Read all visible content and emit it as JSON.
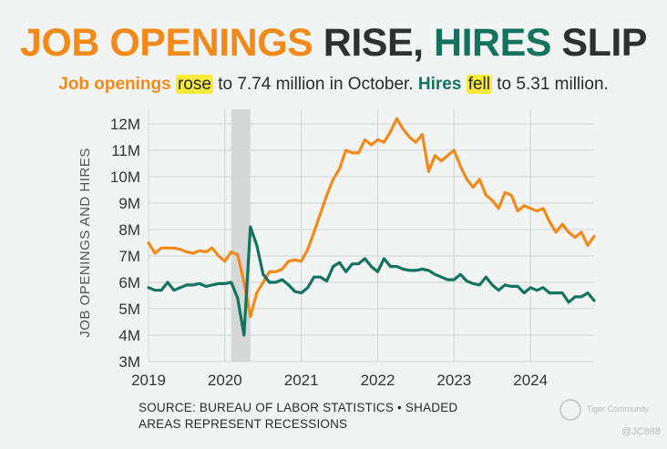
{
  "headline": {
    "part1": "JOB OPENINGS",
    "part2": " RISE, ",
    "part3": "HIRES",
    "part4": " SLIP"
  },
  "subtitle": {
    "s1": "Job openings",
    "s2": " ",
    "s3": "rose",
    "s4": " to 7.74 million in October. ",
    "s5": "Hires",
    "s6": " ",
    "s7": "fell",
    "s8": " to 5.31 million."
  },
  "source": {
    "line1": "SOURCE: BUREAU OF LABOR STATISTICS • SHADED",
    "line2": "AREAS REPRESENT RECESSIONS"
  },
  "logo": {
    "text": "Tiger Community"
  },
  "watermark": "@JC888",
  "colors": {
    "orange": "#f28a1a",
    "green": "#13735f",
    "headline_dark": "#2f3030",
    "recession": "#d6d8d8",
    "grid": "#cfd3d3",
    "axis_text": "#333333"
  },
  "chart_data": {
    "type": "line",
    "title": "JOB OPENINGS RISE, HIRES SLIP",
    "ylabel": "JOB OPENINGS AND HIRES",
    "xlabel": "",
    "xlim": [
      2019,
      2024.833
    ],
    "ylim": [
      3,
      12.5
    ],
    "grid": true,
    "x_ticks": [
      2019,
      2020,
      2021,
      2022,
      2023,
      2024
    ],
    "x_tick_labels": [
      "2019",
      "2020",
      "2021",
      "2022",
      "2023",
      "2024"
    ],
    "y_ticks": [
      3,
      4,
      5,
      6,
      7,
      8,
      9,
      10,
      11,
      12
    ],
    "y_tick_labels": [
      "3M",
      "4M",
      "5M",
      "6M",
      "7M",
      "8M",
      "9M",
      "10M",
      "11M",
      "12M"
    ],
    "recession_shading": [
      [
        2020.083,
        2020.333
      ]
    ],
    "x_start": 2019,
    "x_step_months": 1,
    "series": [
      {
        "name": "Job openings",
        "color_key": "orange",
        "values": [
          7.5,
          7.1,
          7.3,
          7.3,
          7.3,
          7.25,
          7.15,
          7.1,
          7.2,
          7.15,
          7.3,
          7.0,
          6.8,
          7.15,
          7.05,
          6.0,
          4.7,
          5.6,
          6.0,
          6.4,
          6.4,
          6.5,
          6.8,
          6.85,
          6.8,
          7.25,
          7.9,
          8.6,
          9.3,
          9.9,
          10.3,
          11.0,
          10.9,
          10.9,
          11.4,
          11.2,
          11.4,
          11.3,
          11.7,
          12.2,
          11.8,
          11.5,
          11.3,
          11.6,
          10.2,
          10.8,
          10.6,
          10.8,
          11.0,
          10.4,
          9.9,
          9.6,
          9.9,
          9.3,
          9.1,
          8.8,
          9.4,
          9.3,
          8.7,
          8.9,
          8.8,
          8.7,
          8.8,
          8.3,
          7.9,
          8.2,
          7.9,
          7.7,
          7.9,
          7.4,
          7.74
        ]
      },
      {
        "name": "Hires",
        "color_key": "green",
        "values": [
          5.8,
          5.7,
          5.7,
          6.0,
          5.7,
          5.8,
          5.9,
          5.9,
          5.95,
          5.85,
          5.9,
          5.95,
          5.95,
          6.0,
          5.4,
          4.0,
          8.1,
          7.4,
          6.3,
          6.0,
          6.0,
          6.1,
          5.9,
          5.65,
          5.6,
          5.8,
          6.2,
          6.2,
          6.05,
          6.6,
          6.75,
          6.4,
          6.7,
          6.7,
          6.9,
          6.6,
          6.4,
          6.9,
          6.6,
          6.6,
          6.5,
          6.45,
          6.45,
          6.5,
          6.45,
          6.3,
          6.2,
          6.1,
          6.1,
          6.3,
          6.05,
          5.95,
          5.9,
          6.2,
          5.9,
          5.7,
          5.9,
          5.85,
          5.85,
          5.6,
          5.8,
          5.7,
          5.8,
          5.6,
          5.6,
          5.6,
          5.25,
          5.45,
          5.45,
          5.6,
          5.31
        ]
      }
    ]
  }
}
